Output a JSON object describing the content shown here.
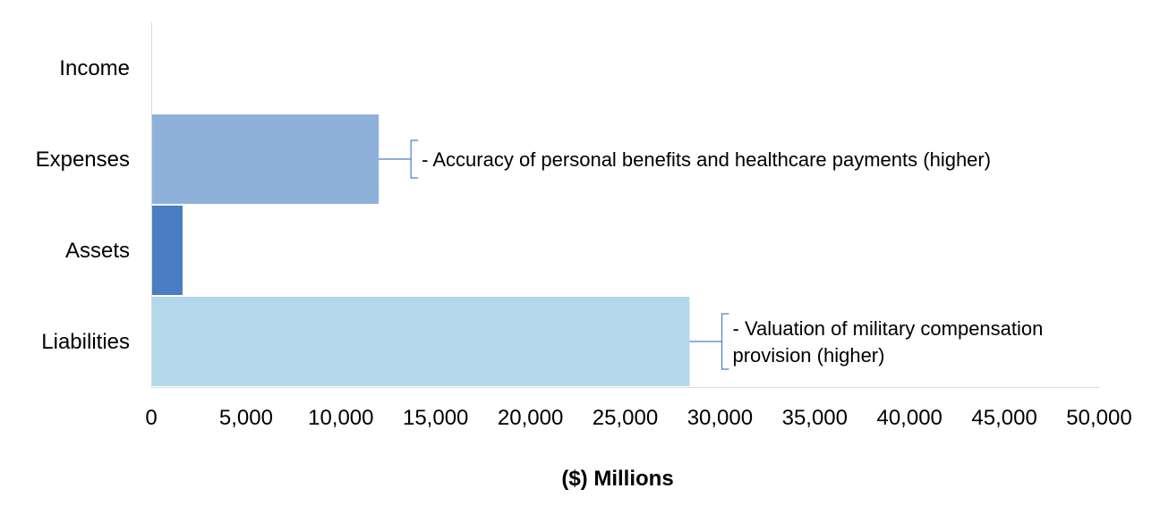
{
  "chart_data": {
    "type": "bar",
    "orientation": "horizontal",
    "categories": [
      "Income",
      "Expenses",
      "Assets",
      "Liabilities"
    ],
    "values": [
      0,
      12000,
      1650,
      28400
    ],
    "colors": [
      "#8EB1DA",
      "#8EB1DA",
      "#4A7EC3",
      "#B4D8EB"
    ],
    "xlabel": "($) Millions",
    "xlim": [
      0,
      50000
    ],
    "xticks": [
      0,
      5000,
      10000,
      15000,
      20000,
      25000,
      30000,
      35000,
      40000,
      45000,
      50000
    ],
    "xtick_labels": [
      "0",
      "5,000",
      "10,000",
      "15,000",
      "20,000",
      "25,000",
      "30,000",
      "35,000",
      "40,000",
      "45,000",
      "50,000"
    ],
    "grid": false,
    "legend": "none",
    "axis_color": "#D9D9D9",
    "bracket_color": "#4A7EC3",
    "annotations": [
      {
        "category": "Expenses",
        "lines": [
          "- Accuracy of personal benefits and healthcare payments (higher)"
        ]
      },
      {
        "category": "Liabilities",
        "lines": [
          "- Valuation of military compensation",
          "provision (higher)"
        ]
      }
    ]
  }
}
